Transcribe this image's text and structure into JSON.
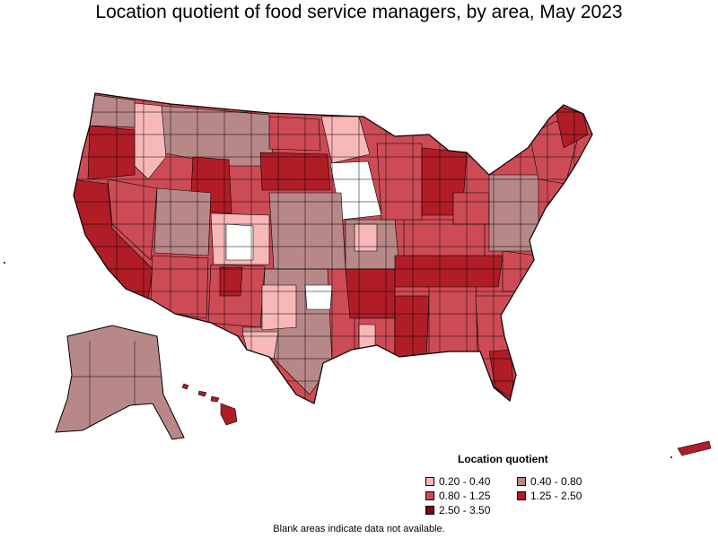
{
  "title": "Location quotient of food service managers, by area, May 2023",
  "legend": {
    "title": "Location quotient",
    "items": [
      {
        "label": "0.20 - 0.40",
        "color": "#f8b8b8"
      },
      {
        "label": "0.40 - 0.80",
        "color": "#b88888"
      },
      {
        "label": "0.80 - 1.25",
        "color": "#cd4b55"
      },
      {
        "label": "1.25 - 2.50",
        "color": "#b01d26"
      },
      {
        "label": "2.50 - 3.50",
        "color": "#780c10"
      }
    ]
  },
  "footnote": "Blank areas indicate data not available.",
  "colors": {
    "border": "#000000",
    "no_data": "#ffffff"
  }
}
